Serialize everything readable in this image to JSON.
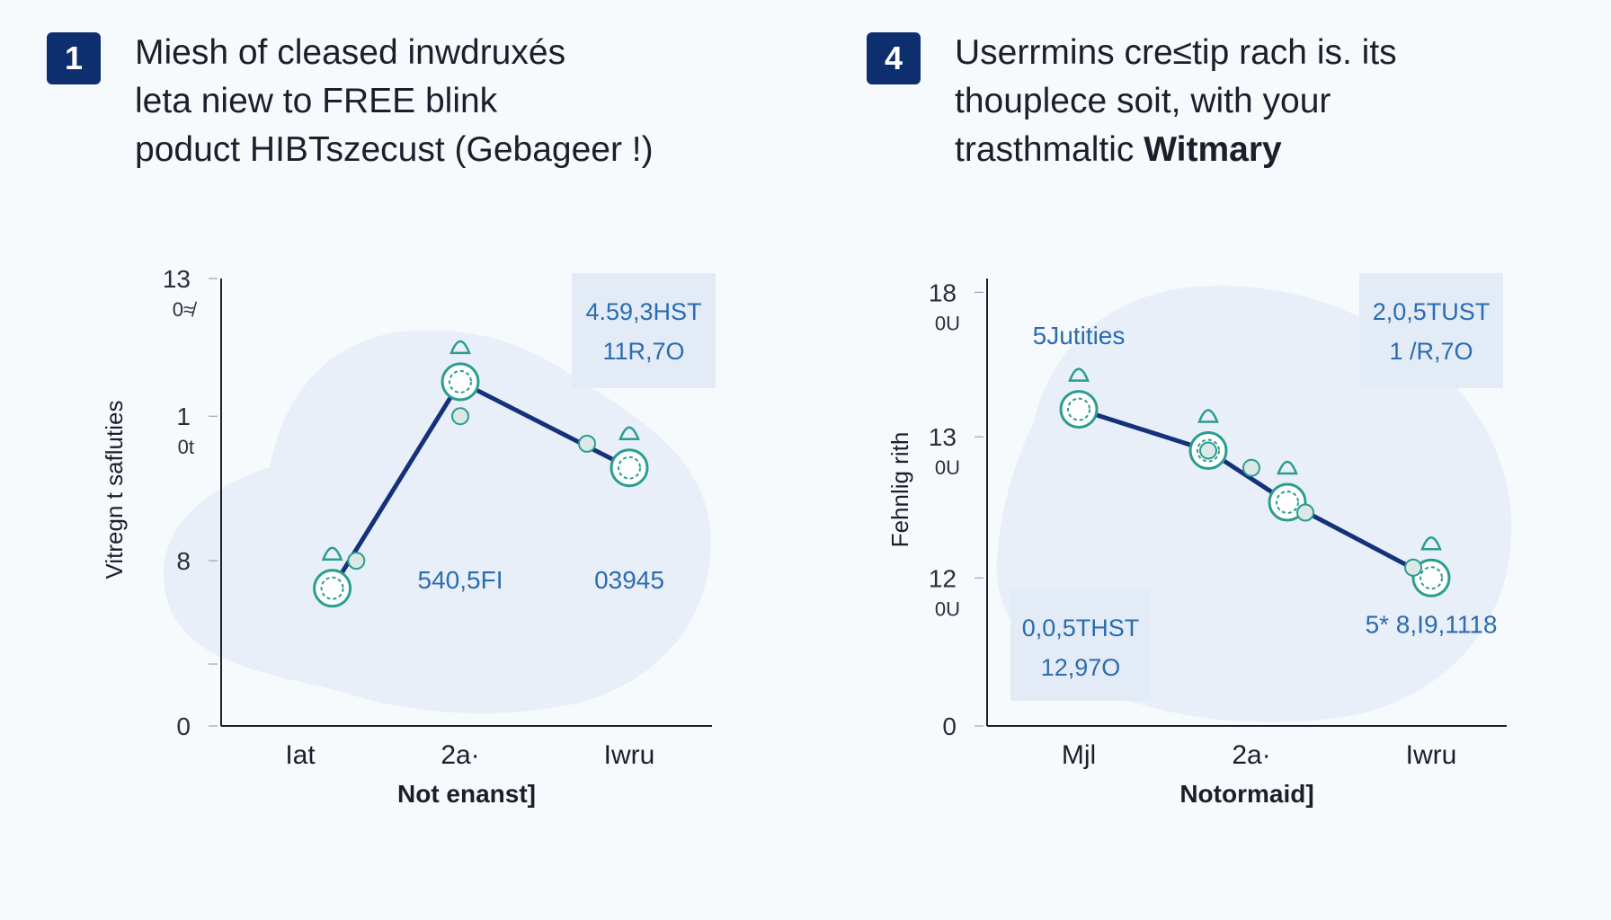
{
  "colors": {
    "line": "#15317a",
    "accent": "#2a9d8f",
    "label": "#2b6cb0",
    "blob": "#e5ecf8",
    "box": "#e2ebf6",
    "axis": "#1b1f2a",
    "badge": "#0e2f6e"
  },
  "panels": [
    {
      "badge": "1",
      "heading": [
        "Miesh of cleased inwdruxés",
        "leta niew to  FREE blink",
        "poduct HIBTszecust (Gebageer !)"
      ],
      "heading_bold": ""
    },
    {
      "badge": "4",
      "heading": [
        "Userrmins cre≤tip rach is. its",
        "thouplece soit, with your",
        "trasthmaltic "
      ],
      "heading_bold": "Witmary"
    }
  ],
  "chart_data": [
    {
      "type": "line",
      "title": "",
      "xlabel": "Not enanst]",
      "ylabel": "Vitregn t safluties",
      "ylim": [
        0,
        13
      ],
      "grid": false,
      "y_ticks": [
        {
          "value": 13,
          "label": "13",
          "sub": "0≉"
        },
        {
          "value": 9,
          "label": "1",
          "sub": "0t"
        },
        {
          "value": 4.8,
          "label": "8",
          "sub": ""
        },
        {
          "value": 1.8,
          "label": "",
          "sub": ""
        },
        {
          "value": 0,
          "label": "0",
          "sub": ""
        }
      ],
      "categories": [
        "Iat",
        "2a·",
        "Iwru"
      ],
      "series": [
        {
          "points": [
            {
              "x": 0.2,
              "y": 4
            },
            {
              "x": 1,
              "y": 10
            },
            {
              "x": 2,
              "y": 7.5
            }
          ]
        }
      ],
      "markers": [
        {
          "x": 0.35,
          "y": 4.8
        },
        {
          "x": 1,
          "y": 9
        },
        {
          "x": 1.75,
          "y": 8.2
        }
      ],
      "data_labels": [
        {
          "x": 1,
          "y": 4,
          "text": "540,5FI"
        },
        {
          "x": 2,
          "y": 4,
          "text": "03945"
        }
      ],
      "info_boxes": [
        {
          "anchor": "top-right",
          "lines": [
            "4.59,3HST",
            "11R,7O"
          ]
        }
      ]
    },
    {
      "type": "line",
      "title": "",
      "xlabel": "Notormaid]",
      "ylabel": "Fehnlig rith",
      "ylim": [
        0,
        13
      ],
      "grid": false,
      "y_ticks": [
        {
          "value": 12.6,
          "label": "18",
          "sub": "0U"
        },
        {
          "value": 8.4,
          "label": "13",
          "sub": "0U"
        },
        {
          "value": 4.3,
          "label": "12",
          "sub": "0U"
        },
        {
          "value": 0,
          "label": "0",
          "sub": ""
        }
      ],
      "categories": [
        "Mjl",
        "2a·",
        "Iwru"
      ],
      "series": [
        {
          "points": [
            {
              "x": 0,
              "y": 9.2
            },
            {
              "x": 0.75,
              "y": 8
            },
            {
              "x": 1.2,
              "y": 6.5
            },
            {
              "x": 2,
              "y": 4.3
            }
          ]
        }
      ],
      "markers": [
        {
          "x": 0.75,
          "y": 8
        },
        {
          "x": 1,
          "y": 7.5
        },
        {
          "x": 1.3,
          "y": 6.2
        },
        {
          "x": 1.9,
          "y": 4.6
        }
      ],
      "data_labels": [
        {
          "x": 0,
          "y": 11.1,
          "text": "5Jutities"
        },
        {
          "x": 2,
          "y": 2.7,
          "text": "5* 8,I9,1118"
        }
      ],
      "info_boxes": [
        {
          "anchor": "top-right",
          "lines": [
            "2,0,5TUST",
            "1 /R,7O"
          ]
        },
        {
          "anchor": "bottom-left",
          "lines": [
            "0,0,5THST",
            "12,97O"
          ]
        }
      ]
    }
  ]
}
